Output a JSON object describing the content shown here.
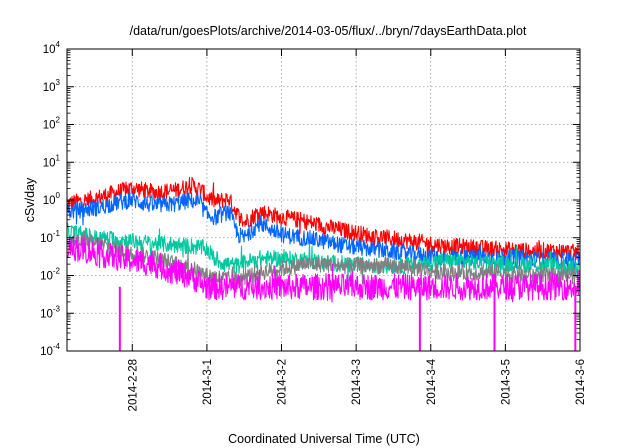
{
  "chart_data": {
    "type": "line",
    "title": "/data/run/goesPlots/archive/2014-03-05/flux/../bryn/7daysEarthData.plot",
    "xlabel": "Coordinated Universal Time (UTC)",
    "ylabel": "cSv/day",
    "yscale": "log",
    "ylim": [
      0.0001,
      10000
    ],
    "xlim": [
      "2014-02-27 03:00",
      "2014-03-06 00:00"
    ],
    "grid": true,
    "x_tick_labels": [
      "2014-2-28",
      "2014-3-1",
      "2014-3-2",
      "2014-3-3",
      "2014-3-4",
      "2014-3-5",
      "2014-3-6"
    ],
    "y_tick_labels": [
      {
        "base": "10",
        "exp": "-4"
      },
      {
        "base": "10",
        "exp": "-3"
      },
      {
        "base": "10",
        "exp": "-2"
      },
      {
        "base": "10",
        "exp": "-1"
      },
      {
        "base": "10",
        "exp": "0"
      },
      {
        "base": "10",
        "exp": "1"
      },
      {
        "base": "10",
        "exp": "2"
      },
      {
        "base": "10",
        "exp": "3"
      },
      {
        "base": "10",
        "exp": "4"
      }
    ],
    "x_axis_times": [
      "2014-02-27 03:00",
      "2014-02-27 12:00",
      "2014-02-27 19:00",
      "2014-02-28 00:00",
      "2014-02-28 07:00",
      "2014-02-28 14:00",
      "2014-02-28 19:00",
      "2014-02-28 22:00",
      "2014-03-01 00:00",
      "2014-03-01 03:00",
      "2014-03-01 07:00",
      "2014-03-01 10:00",
      "2014-03-01 12:00",
      "2014-03-01 17:00",
      "2014-03-02 00:00",
      "2014-03-02 07:00",
      "2014-03-02 14:00",
      "2014-03-02 21:00",
      "2014-03-03 05:00",
      "2014-03-03 14:00",
      "2014-03-03 21:00",
      "2014-03-04 05:00",
      "2014-03-04 14:00",
      "2014-03-04 21:00",
      "2014-03-05 07:00",
      "2014-03-05 17:00",
      "2014-03-06 00:00"
    ],
    "series": [
      {
        "color": "#ff0000",
        "values": [
          0.8,
          1.1,
          1.6,
          2.1,
          1.6,
          1.8,
          2.5,
          1.9,
          1.2,
          0.9,
          1.1,
          0.4,
          0.25,
          0.5,
          0.35,
          0.28,
          0.2,
          0.15,
          0.11,
          0.09,
          0.075,
          0.06,
          0.055,
          0.05,
          0.045,
          0.045,
          0.04
        ]
      },
      {
        "color": "#0066ff",
        "values": [
          0.5,
          0.6,
          0.85,
          1.0,
          0.7,
          0.8,
          1.0,
          0.75,
          0.4,
          0.35,
          0.5,
          0.12,
          0.1,
          0.25,
          0.12,
          0.1,
          0.08,
          0.06,
          0.05,
          0.04,
          0.035,
          0.03,
          0.03,
          0.03,
          0.028,
          0.026,
          0.025
        ]
      },
      {
        "color": "#00c8a0",
        "values": [
          0.15,
          0.1,
          0.09,
          0.08,
          0.07,
          0.065,
          0.06,
          0.055,
          0.05,
          0.025,
          0.02,
          0.018,
          0.022,
          0.028,
          0.028,
          0.026,
          0.022,
          0.02,
          0.018,
          0.018,
          0.02,
          0.025,
          0.022,
          0.02,
          0.02,
          0.018,
          0.015
        ]
      },
      {
        "color": "#808080",
        "values": [
          0.09,
          0.07,
          0.05,
          0.04,
          0.03,
          0.02,
          0.015,
          0.012,
          0.01,
          0.009,
          0.008,
          0.008,
          0.009,
          0.012,
          0.015,
          0.02,
          0.02,
          0.018,
          0.018,
          0.018,
          0.015,
          0.012,
          0.012,
          0.012,
          0.01,
          0.01,
          0.01
        ]
      },
      {
        "color": "#ff00ff",
        "values": [
          0.06,
          0.04,
          0.03,
          0.025,
          0.02,
          0.012,
          0.01,
          0.006,
          0.005,
          0.005,
          0.005,
          0.005,
          0.005,
          0.005,
          0.005,
          0.005,
          0.005,
          0.005,
          0.005,
          0.005,
          0.005,
          0.005,
          0.005,
          0.005,
          0.005,
          0.005,
          0.005
        ],
        "dropouts": [
          "2014-02-27 20:00",
          "2014-03-03 20:30",
          "2014-03-04 20:30",
          "2014-03-05 22:30"
        ]
      }
    ]
  }
}
